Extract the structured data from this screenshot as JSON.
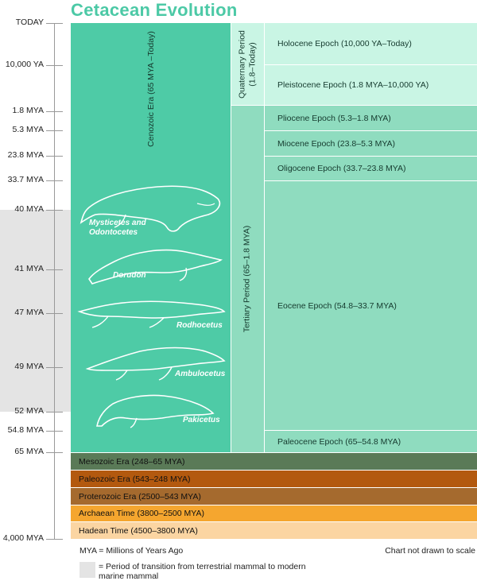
{
  "title": "Cetacean Evolution",
  "axis_ticks": [
    {
      "label": "TODAY"
    },
    {
      "label": "10,000 YA"
    },
    {
      "label": "1.8 MYA"
    },
    {
      "label": "5.3 MYA"
    },
    {
      "label": "23.8 MYA"
    },
    {
      "label": "33.7 MYA"
    },
    {
      "label": "40 MYA"
    },
    {
      "label": "41 MYA"
    },
    {
      "label": "47 MYA"
    },
    {
      "label": "49 MYA"
    },
    {
      "label": "52 MYA"
    },
    {
      "label": "54.8 MYA"
    },
    {
      "label": "65 MYA"
    },
    {
      "label": "4,000 MYA"
    }
  ],
  "cenozoic": {
    "label": "Cenozoic Era (65 MYA –Today)"
  },
  "periods": {
    "quaternary": {
      "line1": "Quaternary Period",
      "line2": "(1.8–Today)"
    },
    "tertiary": {
      "label": "Tertiary Period (65–1.8 MYA)"
    }
  },
  "epochs": [
    {
      "label": "Holocene Epoch (10,000 YA–Today)",
      "color": "#c9f5e4"
    },
    {
      "label": "Pleistocene Epoch (1.8 MYA–10,000 YA)",
      "color": "#c9f5e4"
    },
    {
      "label": "Pliocene Epoch (5.3–1.8 MYA)",
      "color": "#8fdcbf"
    },
    {
      "label": "Miocene Epoch (23.8–5.3 MYA)",
      "color": "#8fdcbf"
    },
    {
      "label": "Oligocene Epoch (33.7–23.8 MYA)",
      "color": "#8fdcbf"
    },
    {
      "label": "Eocene Epoch (54.8–33.7 MYA)",
      "color": "#8fdcbf"
    },
    {
      "label": "Paleocene Epoch (65–54.8 MYA)",
      "color": "#8fdcbf"
    }
  ],
  "eras": [
    {
      "label": "Mesozoic Era (248–65 MYA)",
      "color": "#5a7a57"
    },
    {
      "label": "Paleozoic Era (543–248 MYA)",
      "color": "#b3590f"
    },
    {
      "label": "Proterozoic Era (2500–543 MYA)",
      "color": "#a56a2e"
    },
    {
      "label": "Archaean Time (3800–2500 MYA)",
      "color": "#f5a62f"
    },
    {
      "label": "Hadean Time (4500–3800 MYA)",
      "color": "#fbd5a2"
    }
  ],
  "creatures": {
    "mysticetes": {
      "line1": "Mysticetes and",
      "line2": "Odontocetes"
    },
    "dorudon": "Dorudon",
    "rodhocetus": "Rodhocetus",
    "ambulocetus": "Ambulocetus",
    "pakicetus": "Pakicetus"
  },
  "footer": {
    "mya_note": "MYA = Millions of Years Ago",
    "scale_note": "Chart not drawn to scale",
    "legend": "= Period of transition from terrestrial mammal to modern marine mammal"
  },
  "colors": {
    "title": "#4cc9a6",
    "cenozoic": "#4ecba6",
    "quaternary": "#c9f5e4",
    "tertiary": "#8fdcbf",
    "transition_band": "#e4e4e4"
  }
}
